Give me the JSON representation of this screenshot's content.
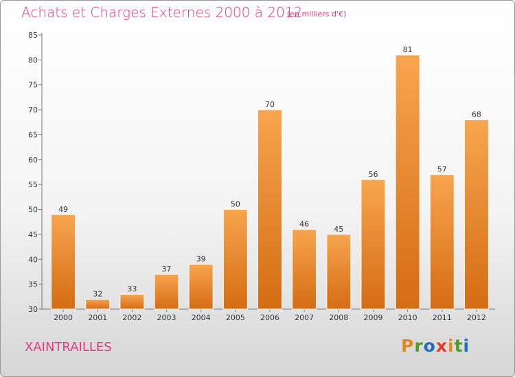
{
  "chart_data": {
    "type": "bar",
    "title": "Achats et Charges Externes 2000 à 2012",
    "subtitle": "(en milliers d'€)",
    "categories": [
      "2000",
      "2001",
      "2002",
      "2003",
      "2004",
      "2005",
      "2006",
      "2007",
      "2008",
      "2009",
      "2010",
      "2011",
      "2012"
    ],
    "values": [
      49,
      32,
      33,
      37,
      39,
      50,
      70,
      46,
      45,
      56,
      81,
      57,
      68
    ],
    "ylim": [
      30,
      85
    ],
    "yticks": [
      30,
      35,
      40,
      45,
      50,
      55,
      60,
      65,
      70,
      75,
      80,
      85
    ],
    "xlabel": "",
    "ylabel": "",
    "grid": false,
    "colors": {
      "bar_top": "#f7a54f",
      "bar_bottom": "#d46c12",
      "title": "#e23a7a"
    }
  },
  "commune": "XAINTRAILLES",
  "logo": {
    "letters": [
      "P",
      "r",
      "o",
      "x",
      "i",
      "t",
      "i"
    ],
    "colors": [
      "#e08a1e",
      "#4b9a2e",
      "#1f6fc2",
      "#e13a2a",
      "#e08a1e",
      "#4b9a2e",
      "#1f6fc2"
    ]
  }
}
